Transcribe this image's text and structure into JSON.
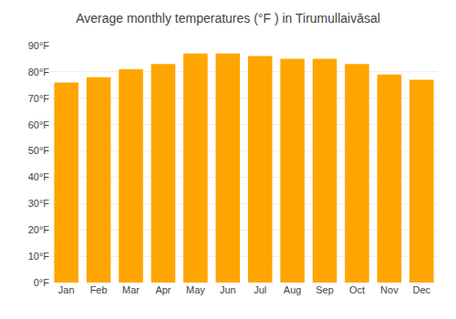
{
  "chart_data": {
    "type": "bar",
    "title": "Average monthly temperatures (°F ) in Tirumullaivāsal",
    "categories": [
      "Jan",
      "Feb",
      "Mar",
      "Apr",
      "May",
      "Jun",
      "Jul",
      "Aug",
      "Sep",
      "Oct",
      "Nov",
      "Dec"
    ],
    "values": [
      76,
      78,
      81,
      83,
      87,
      87,
      86,
      85,
      85,
      83,
      79,
      77
    ],
    "color": "#FFA500",
    "ylim": [
      0,
      90
    ],
    "yticks": [
      {
        "value": 0,
        "label": "0°F"
      },
      {
        "value": 10,
        "label": "10°F"
      },
      {
        "value": 20,
        "label": "20°F"
      },
      {
        "value": 30,
        "label": "30°F"
      },
      {
        "value": 40,
        "label": "40°F"
      },
      {
        "value": 50,
        "label": "50°F"
      },
      {
        "value": 60,
        "label": "60°F"
      },
      {
        "value": 70,
        "label": "70°F"
      },
      {
        "value": 80,
        "label": "80°F"
      },
      {
        "value": 90,
        "label": "90°F"
      }
    ],
    "grid": true
  }
}
